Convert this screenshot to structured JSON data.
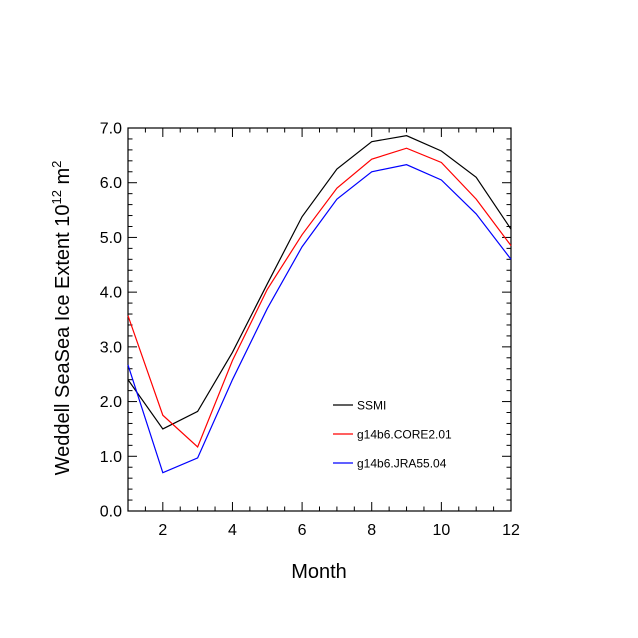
{
  "chart_data": {
    "type": "line",
    "xlabel": "Month",
    "ylabel_main": "Weddell SeaSea Ice Extent 10",
    "ylabel_exp": "12",
    "ylabel_unit": " m",
    "ylabel_unit_exp": "2",
    "xlim": [
      1,
      12
    ],
    "ylim": [
      0,
      7
    ],
    "xticks": [
      2,
      4,
      6,
      8,
      10,
      12
    ],
    "xtick_labels": [
      "2",
      "4",
      "6",
      "8",
      "10",
      "12"
    ],
    "yticks": [
      0,
      1,
      2,
      3,
      4,
      5,
      6,
      7
    ],
    "ytick_labels": [
      "0.0",
      "1.0",
      "2.0",
      "3.0",
      "4.0",
      "5.0",
      "6.0",
      "7.0"
    ],
    "legend_position": "bottom-right",
    "x": [
      1,
      2,
      3,
      4,
      5,
      6,
      7,
      8,
      9,
      10,
      11,
      12
    ],
    "series": [
      {
        "name": "SSMI",
        "color": "#000000",
        "values": [
          2.4,
          1.5,
          1.82,
          2.9,
          4.15,
          5.38,
          6.25,
          6.75,
          6.86,
          6.58,
          6.1,
          5.15
        ]
      },
      {
        "name": "g14b6.CORE2.01",
        "color": "#ff0000",
        "values": [
          3.57,
          1.75,
          1.17,
          2.75,
          4.05,
          5.05,
          5.9,
          6.43,
          6.63,
          6.37,
          5.7,
          4.85
        ]
      },
      {
        "name": "g14b6.JRA55.04",
        "color": "#0000ff",
        "values": [
          2.67,
          0.7,
          0.97,
          2.4,
          3.7,
          4.83,
          5.7,
          6.2,
          6.33,
          6.05,
          5.43,
          4.6
        ]
      }
    ]
  }
}
